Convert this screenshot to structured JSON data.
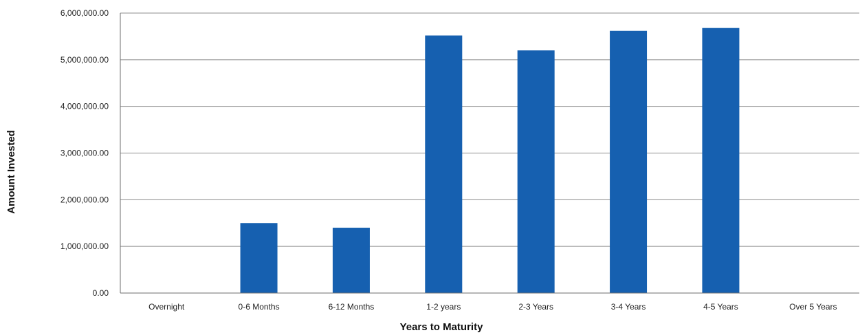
{
  "chart_data": {
    "type": "bar",
    "title": "",
    "xlabel": "Years to Maturity",
    "ylabel": "Amount Invested",
    "categories": [
      "Overnight",
      "0-6 Months",
      "6-12 Months",
      "1-2 years",
      "2-3 Years",
      "3-4 Years",
      "4-5 Years",
      "Over 5 Years"
    ],
    "values": [
      0,
      1500000,
      1400000,
      5520000,
      5200000,
      5620000,
      5680000,
      0
    ],
    "ylim": [
      0,
      6000000
    ],
    "yticks": [
      0,
      1000000,
      2000000,
      3000000,
      4000000,
      5000000,
      6000000
    ],
    "ytick_labels": [
      "0.00",
      "1,000,000.00",
      "2,000,000.00",
      "3,000,000.00",
      "4,000,000.00",
      "5,000,000.00",
      "6,000,000.00"
    ],
    "grid": true,
    "legend": "none",
    "bar_color": "#1660b0"
  }
}
